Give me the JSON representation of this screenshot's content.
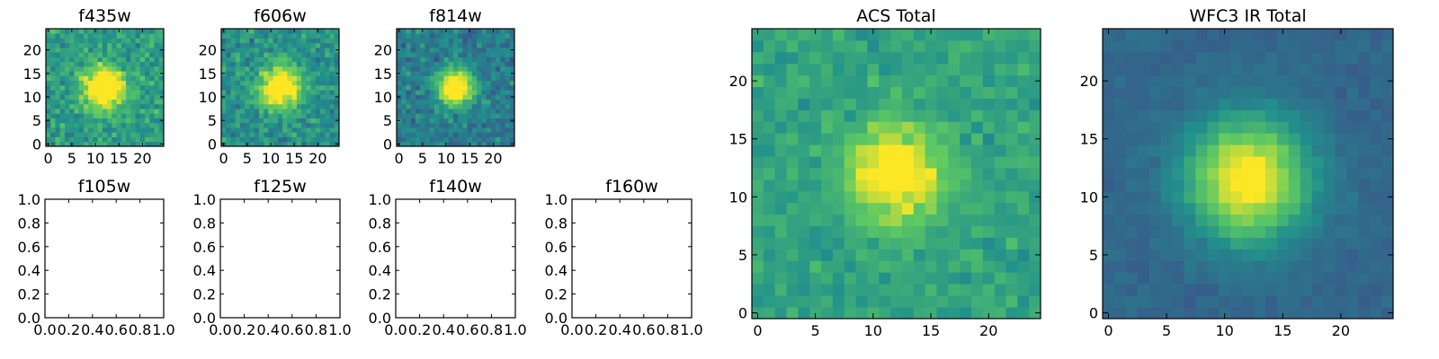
{
  "chart_data": [
    {
      "type": "heatmap",
      "title": "f435w",
      "grid": "25x25",
      "xlim": [
        -0.5,
        24.5
      ],
      "ylim": [
        -0.5,
        24.5
      ],
      "xticks": [
        0,
        5,
        10,
        15,
        20
      ],
      "yticks": [
        0,
        5,
        10,
        15,
        20
      ],
      "source_center": [
        12,
        12
      ],
      "peak": 0.72,
      "sigma": 3.0,
      "noise": 0.22,
      "background": 0.55
    },
    {
      "type": "heatmap",
      "title": "f606w",
      "grid": "25x25",
      "xlim": [
        -0.5,
        24.5
      ],
      "ylim": [
        -0.5,
        24.5
      ],
      "xticks": [
        0,
        5,
        10,
        15,
        20
      ],
      "yticks": [
        0,
        5,
        10,
        15,
        20
      ],
      "source_center": [
        12,
        12
      ],
      "peak": 0.72,
      "sigma": 3.0,
      "noise": 0.22,
      "background": 0.5
    },
    {
      "type": "heatmap",
      "title": "f814w",
      "grid": "25x25",
      "xlim": [
        -0.5,
        24.5
      ],
      "ylim": [
        -0.5,
        24.5
      ],
      "xticks": [
        0,
        5,
        10,
        15,
        20
      ],
      "yticks": [
        0,
        5,
        10,
        15,
        20
      ],
      "source_center": [
        12,
        12
      ],
      "peak": 0.85,
      "sigma": 2.6,
      "noise": 0.2,
      "background": 0.42
    },
    {
      "type": "empty",
      "title": "f105w",
      "xlim": [
        0,
        1
      ],
      "ylim": [
        0,
        1
      ],
      "xticks": [
        "0.0",
        "0.2",
        "0.4",
        "0.6",
        "0.8",
        "1.0"
      ],
      "yticks": [
        "0.0",
        "0.2",
        "0.4",
        "0.6",
        "0.8",
        "1.0"
      ]
    },
    {
      "type": "empty",
      "title": "f125w",
      "xlim": [
        0,
        1
      ],
      "ylim": [
        0,
        1
      ],
      "xticks": [
        "0.0",
        "0.2",
        "0.4",
        "0.6",
        "0.8",
        "1.0"
      ],
      "yticks": [
        "0.0",
        "0.2",
        "0.4",
        "0.6",
        "0.8",
        "1.0"
      ]
    },
    {
      "type": "empty",
      "title": "f140w",
      "xlim": [
        0,
        1
      ],
      "ylim": [
        0,
        1
      ],
      "xticks": [
        "0.0",
        "0.2",
        "0.4",
        "0.6",
        "0.8",
        "1.0"
      ],
      "yticks": [
        "0.0",
        "0.2",
        "0.4",
        "0.6",
        "0.8",
        "1.0"
      ]
    },
    {
      "type": "empty",
      "title": "f160w",
      "xlim": [
        0,
        1
      ],
      "ylim": [
        0,
        1
      ],
      "xticks": [
        "0.0",
        "0.2",
        "0.4",
        "0.6",
        "0.8",
        "1.0"
      ],
      "yticks": [
        "0.0",
        "0.2",
        "0.4",
        "0.6",
        "0.8",
        "1.0"
      ]
    },
    {
      "type": "heatmap",
      "title": "ACS Total",
      "grid": "25x25",
      "xlim": [
        -0.5,
        24.5
      ],
      "ylim": [
        -0.5,
        24.5
      ],
      "xticks": [
        0,
        5,
        10,
        15,
        20
      ],
      "yticks": [
        0,
        5,
        10,
        15,
        20
      ],
      "source_center": [
        12,
        12
      ],
      "peak": 0.55,
      "sigma": 2.8,
      "noise": 0.14,
      "background": 0.58
    },
    {
      "type": "heatmap",
      "title": "WFC3 IR Total",
      "grid": "25x25",
      "xlim": [
        -0.5,
        24.5
      ],
      "ylim": [
        -0.5,
        24.5
      ],
      "xticks": [
        0,
        5,
        10,
        15,
        20
      ],
      "yticks": [
        0,
        5,
        10,
        15,
        20
      ],
      "source_center": [
        12,
        11.5
      ],
      "peak": 0.72,
      "sigma": 3.6,
      "noise": 0.06,
      "background": 0.33
    }
  ],
  "colormap": [
    "#440154",
    "#3b528b",
    "#21918c",
    "#5ec962",
    "#fde725"
  ],
  "axis_color": "#000000"
}
